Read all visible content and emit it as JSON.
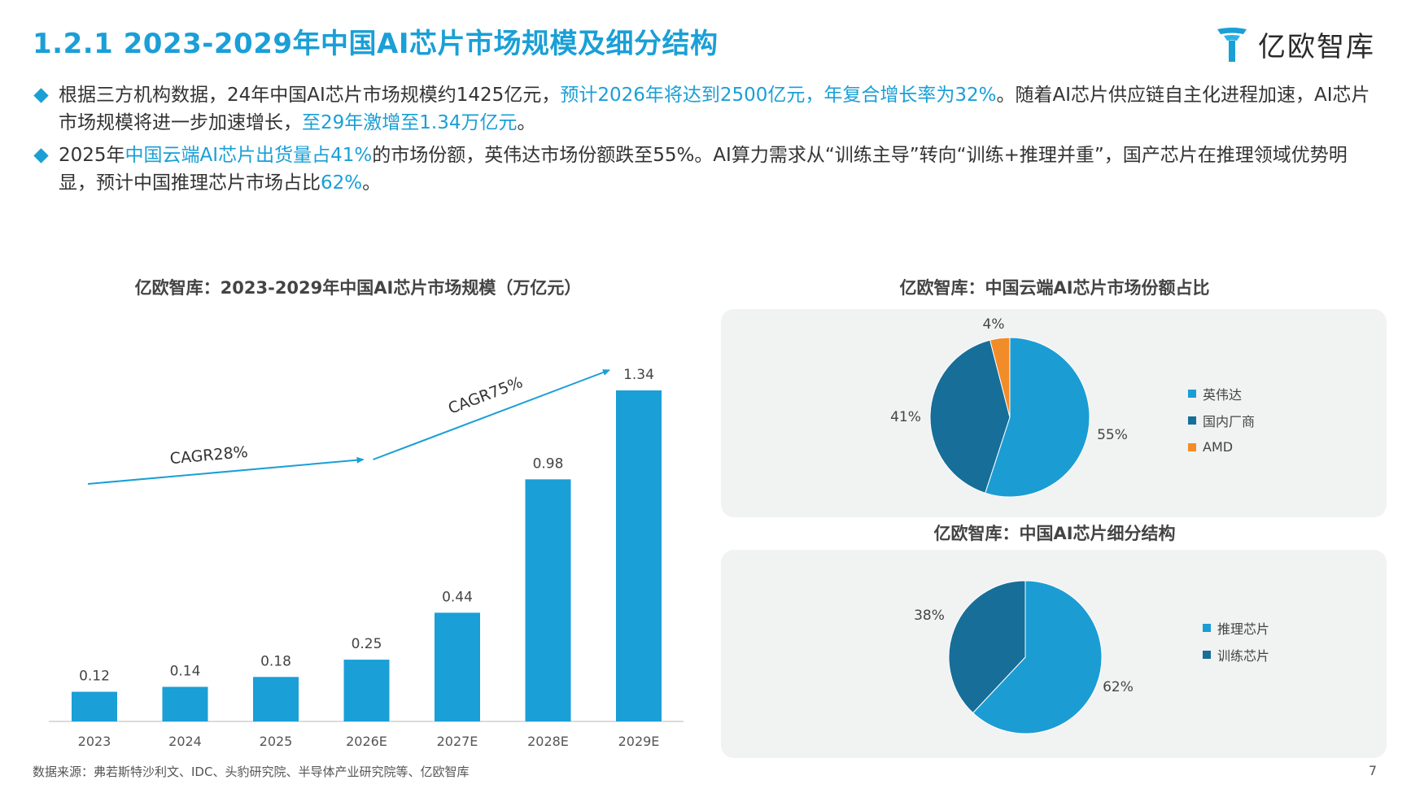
{
  "header": {
    "title": "1.2.1 2023-2029年中国AI芯片市场规模及细分结构",
    "logo_text": "亿欧智库"
  },
  "bullets": [
    {
      "parts": [
        {
          "text": "根据三方机构数据，24年中国AI芯片市场规模约1425亿元，",
          "hl": false
        },
        {
          "text": "预计2026年将达到2500亿元，年复合增长率为32%",
          "hl": true
        },
        {
          "text": "。随着AI芯片供应链自主化进程加速，AI芯片市场规模将进一步加速增长，",
          "hl": false
        },
        {
          "text": "至29年激增至1.34万亿元",
          "hl": true
        },
        {
          "text": "。",
          "hl": false
        }
      ]
    },
    {
      "parts": [
        {
          "text": "2025年",
          "hl": false
        },
        {
          "text": "中国云端AI芯片出货量占41%",
          "hl": true
        },
        {
          "text": "的市场份额，英伟达市场份额跌至55%。AI算力需求从“训练主导”转向“训练+推理并重”，国产芯片在推理领域优势明显，预计中国推理芯片市场占比",
          "hl": false
        },
        {
          "text": "62%",
          "hl": true
        },
        {
          "text": "。",
          "hl": false
        }
      ]
    }
  ],
  "chart_data": [
    {
      "type": "bar",
      "title": "亿欧智库：2023-2029年中国AI芯片市场规模（万亿元）",
      "categories": [
        "2023",
        "2024",
        "2025",
        "2026E",
        "2027E",
        "2028E",
        "2029E"
      ],
      "values": [
        0.12,
        0.14,
        0.18,
        0.25,
        0.44,
        0.98,
        1.34
      ],
      "value_labels": [
        "0.12",
        "0.14",
        "0.18",
        "0.25",
        "0.44",
        "0.98",
        "1.34"
      ],
      "ylim": [
        0,
        1.34
      ],
      "color": "#1a9fd6",
      "annotations": [
        {
          "text": "CAGR28%",
          "from": "2023",
          "to": "2026E"
        },
        {
          "text": "CAGR75%",
          "from": "2026E",
          "to": "2029E"
        }
      ],
      "grid": false
    },
    {
      "type": "pie",
      "title": "亿欧智库：中国云端AI芯片市场份额占比",
      "labels": [
        "英伟达",
        "国内厂商",
        "AMD"
      ],
      "values": [
        55,
        41,
        4
      ],
      "value_labels": [
        "55%",
        "41%",
        "4%"
      ],
      "colors": [
        "#1b9dd3",
        "#176e99",
        "#f28c28"
      ],
      "legend_position": "right"
    },
    {
      "type": "pie",
      "title": "亿欧智库：中国AI芯片细分结构",
      "labels": [
        "推理芯片",
        "训练芯片"
      ],
      "values": [
        62,
        38
      ],
      "value_labels": [
        "62%",
        "38%"
      ],
      "colors": [
        "#1b9dd3",
        "#176e99"
      ],
      "legend_position": "right"
    }
  ],
  "footer": {
    "source": "数据来源：弗若斯特沙利文、IDC、头豹研究院、半导体产业研究院等、亿欧智库",
    "page": "7"
  }
}
